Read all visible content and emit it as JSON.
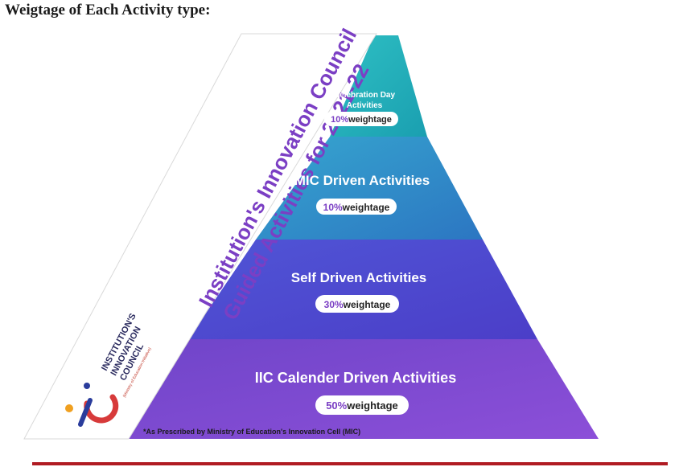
{
  "heading": "Weigtage of Each Activity type:",
  "banner": {
    "line1": "Institution's Innovation Council",
    "line2": "Guided Activities for 2021-22"
  },
  "logo": {
    "line1": "INSTITUTION'S",
    "line2": "INNOVATION",
    "line3": "COUNCIL",
    "subtitle": "(Ministry of Education Initiative)"
  },
  "tiers": [
    {
      "name_line1": "Celebration Day",
      "name_line2": "Activities",
      "percent": "10%",
      "suffix": "weightage",
      "color": "#2fb6bd"
    },
    {
      "name_line1": "MIC Driven  Activities",
      "percent": "10%",
      "suffix": "weightage",
      "color": "#2a8dc4"
    },
    {
      "name_line1": "Self Driven Activities",
      "percent": "30%",
      "suffix": "weightage",
      "color": "#4a4fcc"
    },
    {
      "name_line1": "IIC Calender Driven Activities",
      "percent": "50%",
      "suffix": "weightage",
      "color": "#7a47cf"
    }
  ],
  "footnote": "*As Prescribed by Ministry of Education's Innovation Cell (MIC)",
  "colors": {
    "banner_text": "#7b3fc4",
    "percent_text": "#7b3fc4",
    "pill_bg": "#ffffff",
    "rule": "#b01b22"
  },
  "chart_data": {
    "type": "pyramid",
    "categories": [
      "Celebration Day Activities",
      "MIC Driven  Activities",
      "Self Driven Activities",
      "IIC Calender Driven Activities"
    ],
    "values": [
      10,
      10,
      30,
      50
    ]
  }
}
